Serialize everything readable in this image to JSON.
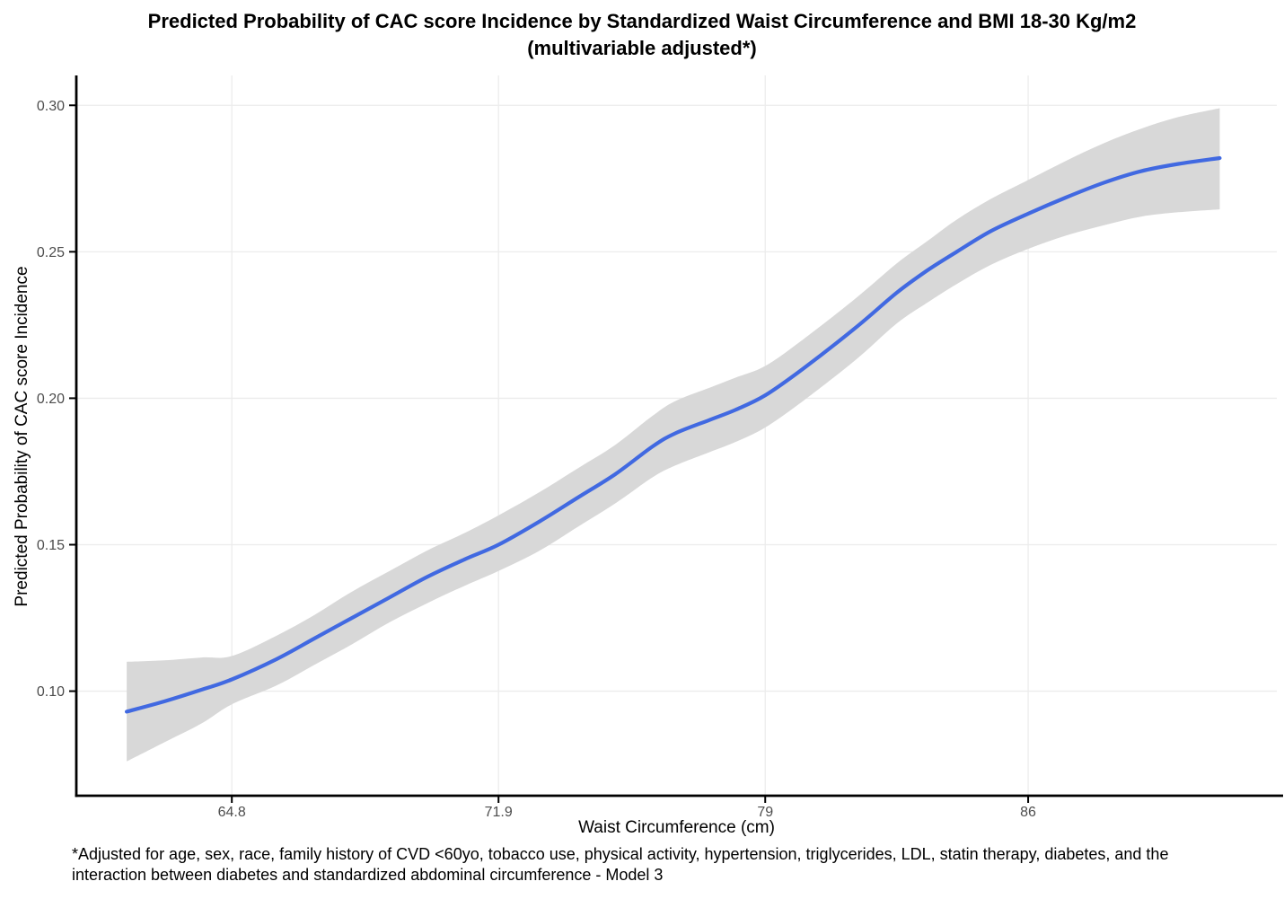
{
  "title": {
    "line1": "Predicted Probability of CAC score Incidence by Standardized Waist Circumference and BMI 18-30 Kg/m2",
    "line2": "(multivariable adjusted*)"
  },
  "caption": {
    "line1": "*Adjusted for age, sex, race, family history of CVD <60yo, tobacco use, physical activity, hypertension, triglycerides, LDL, statin therapy, diabetes, and the",
    "line2": "interaction between diabetes and standardized abdominal circumference - Model 3"
  },
  "chart_data": {
    "type": "line",
    "title": "Predicted Probability of CAC score Incidence by Standardized Waist Circumference and BMI 18-30 Kg/m2 (multivariable adjusted*)",
    "xlabel": "Waist Circumference (cm)",
    "ylabel": "Predicted Probability of CAC score Incidence",
    "x_ticks": [
      64.8,
      71.9,
      79,
      86
    ],
    "x_tick_labels": [
      "64.8",
      "71.9",
      "79",
      "86"
    ],
    "y_ticks": [
      0.1,
      0.15,
      0.2,
      0.25,
      0.3
    ],
    "y_tick_labels": [
      "0.10",
      "0.15",
      "0.20",
      "0.25",
      "0.30"
    ],
    "xlim": [
      60.66,
      92.62
    ],
    "ylim": [
      0.0643,
      0.3102
    ],
    "grid": "major-only",
    "legend": "none",
    "series": [
      {
        "name": "predicted-probability",
        "x": [
          62.0,
          63.0,
          64.0,
          64.8,
          66.0,
          67.0,
          68.0,
          69.0,
          70.0,
          71.0,
          71.9,
          73.0,
          74.0,
          75.0,
          76.0,
          76.6,
          77.5,
          78.2,
          79.0,
          80.0,
          81.4,
          82.5,
          83.3,
          84.1,
          85.0,
          86.0,
          87.0,
          88.0,
          89.0,
          90.0,
          91.1
        ],
        "y": [
          0.093,
          0.0965,
          0.1005,
          0.104,
          0.111,
          0.118,
          0.125,
          0.132,
          0.139,
          0.145,
          0.15,
          0.158,
          0.166,
          0.174,
          0.1835,
          0.188,
          0.1925,
          0.196,
          0.201,
          0.21,
          0.224,
          0.236,
          0.2435,
          0.25,
          0.257,
          0.263,
          0.2685,
          0.2735,
          0.2775,
          0.28,
          0.282
        ],
        "ci_upper": [
          0.11,
          0.1105,
          0.1115,
          0.112,
          0.119,
          0.126,
          0.134,
          0.141,
          0.148,
          0.154,
          0.16,
          0.168,
          0.176,
          0.184,
          0.194,
          0.199,
          0.2035,
          0.207,
          0.211,
          0.22,
          0.234,
          0.246,
          0.2535,
          0.261,
          0.268,
          0.2745,
          0.281,
          0.287,
          0.292,
          0.296,
          0.299
        ],
        "ci_lower": [
          0.076,
          0.0825,
          0.089,
          0.0955,
          0.102,
          0.109,
          0.116,
          0.1235,
          0.13,
          0.136,
          0.141,
          0.148,
          0.156,
          0.164,
          0.173,
          0.177,
          0.1815,
          0.185,
          0.19,
          0.199,
          0.213,
          0.2255,
          0.2325,
          0.239,
          0.2455,
          0.251,
          0.2555,
          0.259,
          0.262,
          0.2635,
          0.2645
        ]
      }
    ],
    "colors": {
      "line": "#4169E1",
      "band": "#D8D8D8",
      "grid": "#ECECEC",
      "axis": "#000000",
      "tick_label": "#4D4D4D",
      "background": "#FFFFFF"
    }
  }
}
